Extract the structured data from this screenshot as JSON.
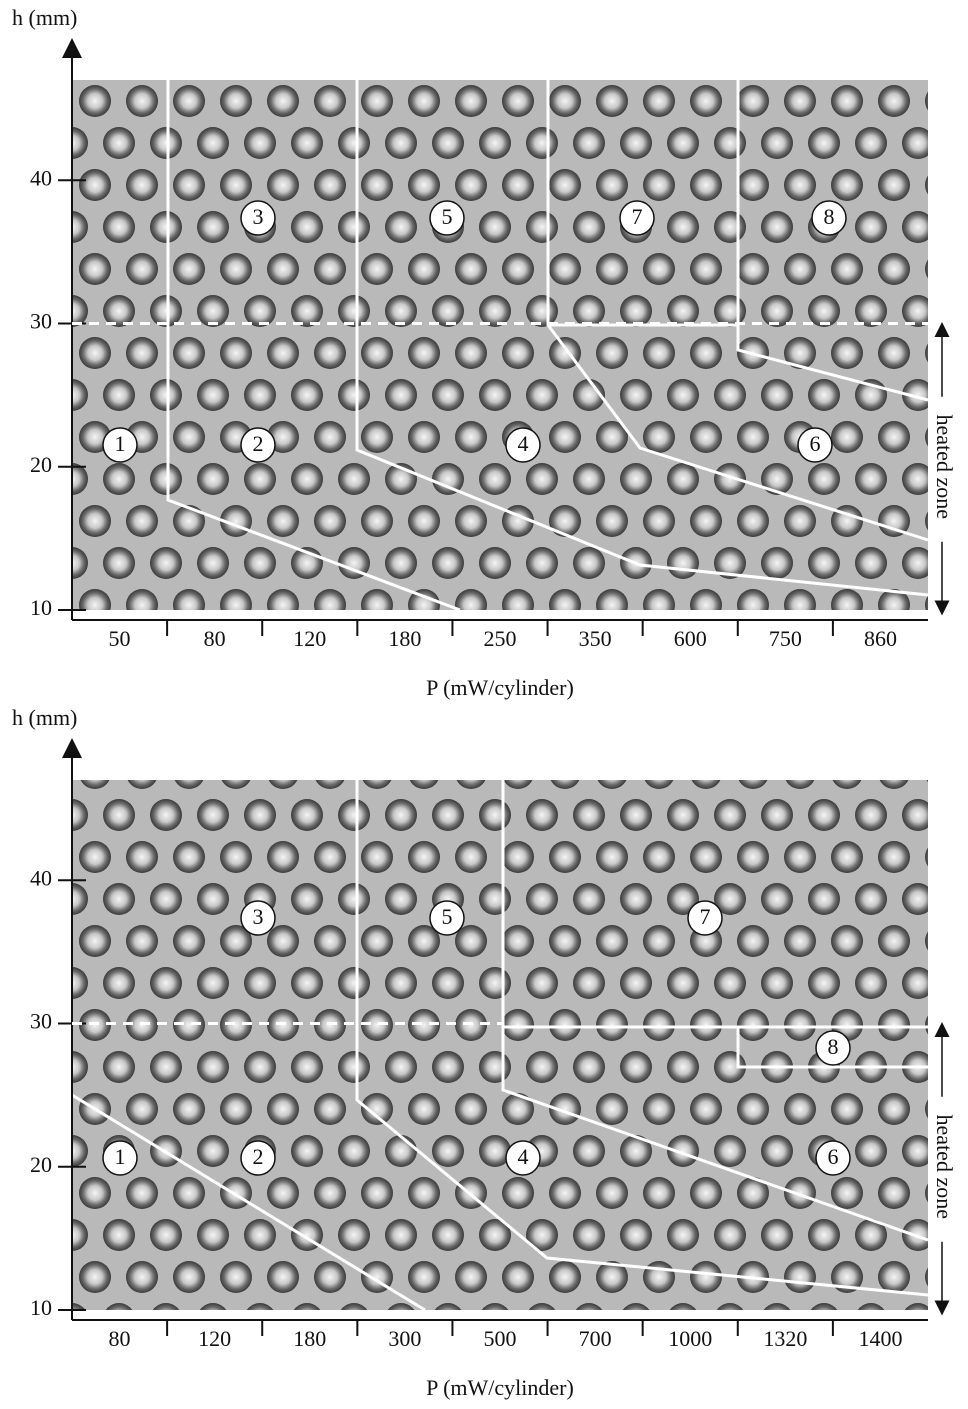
{
  "chart_data": [
    {
      "type": "regime-map",
      "y_label": "h (mm)",
      "x_label": "P (mW/cylinder)",
      "categories": [
        "50",
        "80",
        "120",
        "180",
        "250",
        "350",
        "600",
        "750",
        "860"
      ],
      "ylim": [
        10,
        47
      ],
      "yticks": [
        10,
        20,
        30,
        40
      ],
      "regions": [
        "1",
        "2",
        "3",
        "4",
        "5",
        "6",
        "7",
        "8"
      ],
      "annotation": "heated zone"
    },
    {
      "type": "regime-map",
      "y_label": "h (mm)",
      "x_label": "P (mW/cylinder)",
      "categories": [
        "80",
        "120",
        "180",
        "300",
        "500",
        "700",
        "1000",
        "1320",
        "1400"
      ],
      "ylim": [
        10,
        47
      ],
      "yticks": [
        10,
        20,
        30,
        40
      ],
      "regions": [
        "1",
        "2",
        "3",
        "4",
        "5",
        "6",
        "7",
        "8"
      ],
      "annotation": "heated zone"
    }
  ]
}
